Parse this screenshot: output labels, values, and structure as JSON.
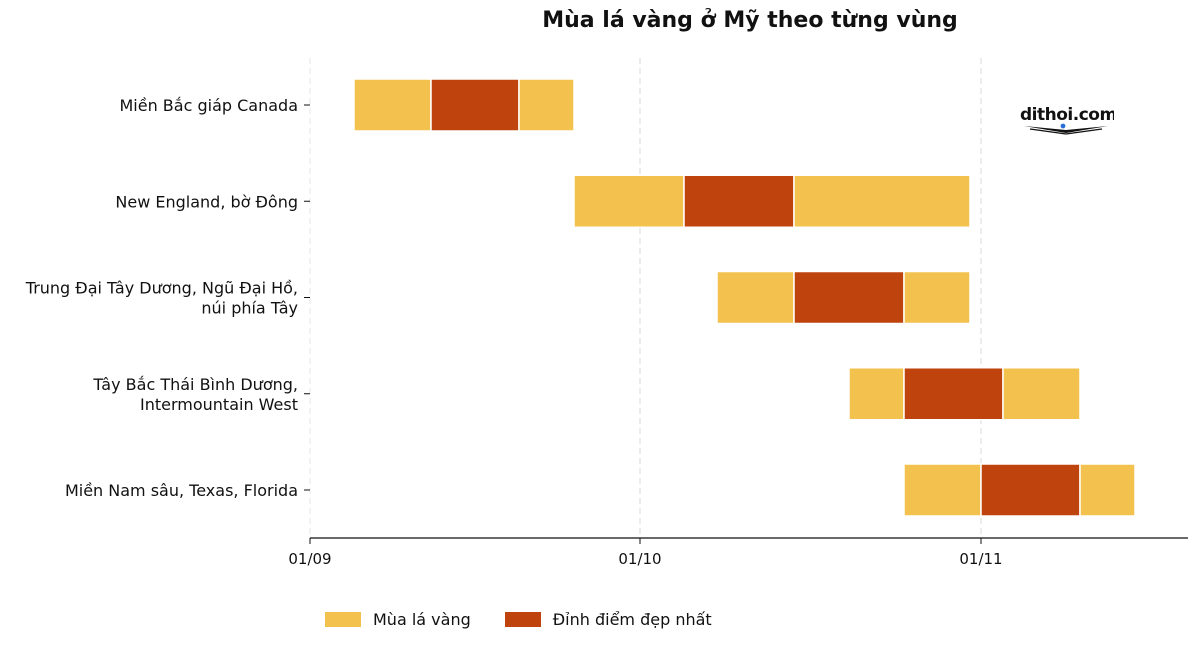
{
  "chart_data": {
    "type": "gantt",
    "title": "Mùa lá vàng ở Mỹ theo từng vùng",
    "xlabel": "",
    "ylabel": "",
    "x_ticks": [
      "01/09",
      "01/10",
      "01/11"
    ],
    "x_range": [
      "2023-09-01",
      "2023-11-25"
    ],
    "grid": "vertical dashed at x ticks",
    "legend_position": "bottom-left",
    "series": [
      {
        "name": "Mùa lá vàng",
        "color": "#F2C14E"
      },
      {
        "name": "Đỉnh điểm đẹp nhất",
        "color": "#BE430D"
      }
    ],
    "categories": [
      {
        "label": [
          "Miền Bắc giáp Canada"
        ],
        "season_start": "2023-09-05",
        "season_end": "2023-09-25",
        "peak_start": "2023-09-12",
        "peak_end": "2023-09-20"
      },
      {
        "label": [
          "New England, bờ Đông"
        ],
        "season_start": "2023-09-25",
        "season_end": "2023-10-31",
        "peak_start": "2023-10-05",
        "peak_end": "2023-10-15"
      },
      {
        "label": [
          "Trung Đại Tây Dương, Ngũ Đại Hồ,",
          "núi phía Tây"
        ],
        "season_start": "2023-10-08",
        "season_end": "2023-10-31",
        "peak_start": "2023-10-15",
        "peak_end": "2023-10-25"
      },
      {
        "label": [
          "Tây Bắc Thái Bình Dương,",
          "Intermountain West"
        ],
        "season_start": "2023-10-20",
        "season_end": "2023-11-10",
        "peak_start": "2023-10-25",
        "peak_end": "2023-11-03"
      },
      {
        "label": [
          "Miền Nam sâu, Texas, Florida"
        ],
        "season_start": "2023-10-25",
        "season_end": "2023-11-15",
        "peak_start": "2023-11-01",
        "peak_end": "2023-11-10"
      }
    ]
  },
  "watermark": "dithoi.com"
}
